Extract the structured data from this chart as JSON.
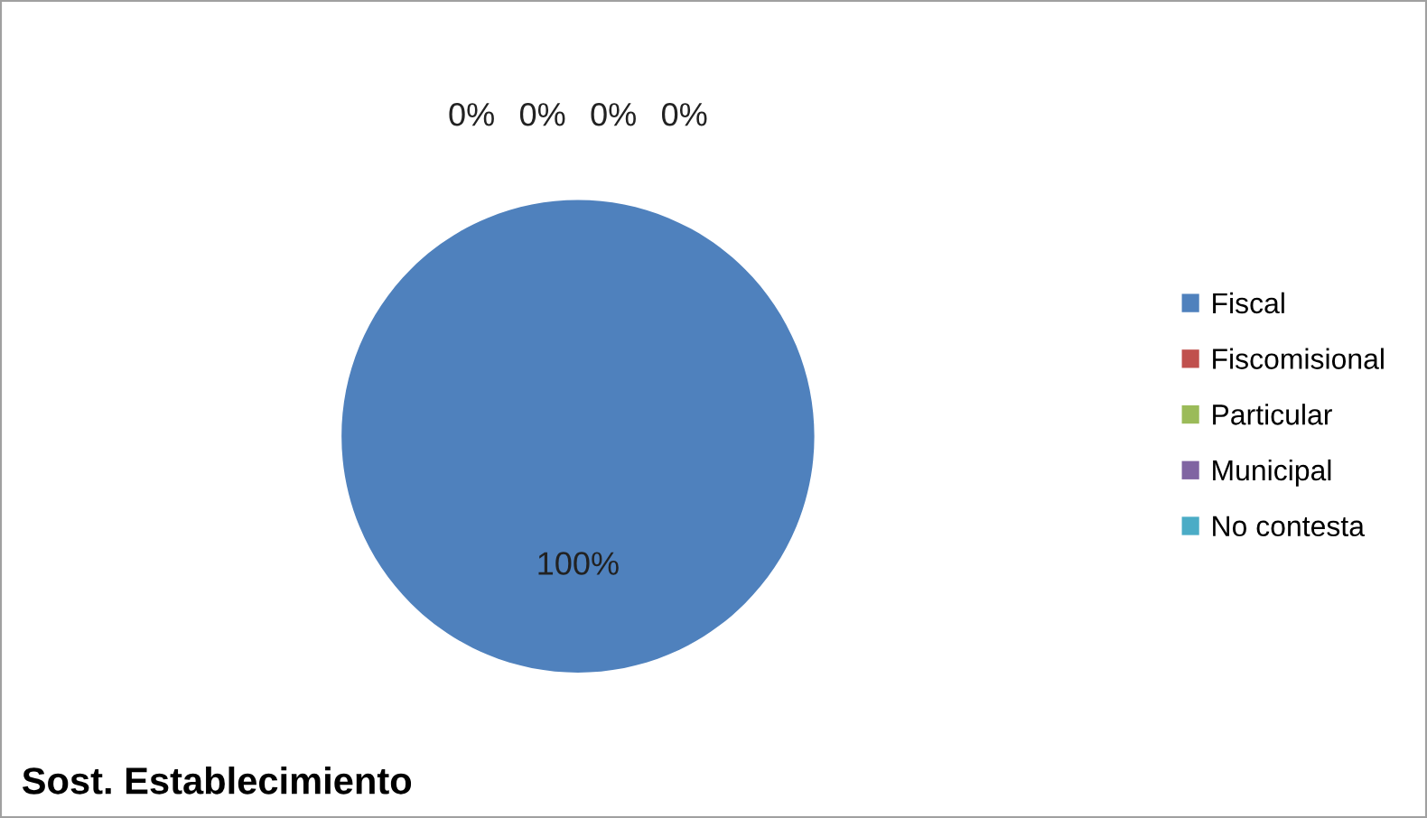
{
  "chart_data": {
    "type": "pie",
    "title": "Sost. Establecimiento",
    "categories": [
      "Fiscal",
      "Fiscomisional",
      "Particular",
      "Municipal",
      "No contesta"
    ],
    "values": [
      100,
      0,
      0,
      0,
      0
    ],
    "colors": [
      "#4f81bd",
      "#c0504d",
      "#9bbb59",
      "#8064a2",
      "#4bacc6"
    ],
    "value_labels": [
      "100%",
      "0%",
      "0%",
      "0%",
      "0%"
    ],
    "legend": "right"
  }
}
